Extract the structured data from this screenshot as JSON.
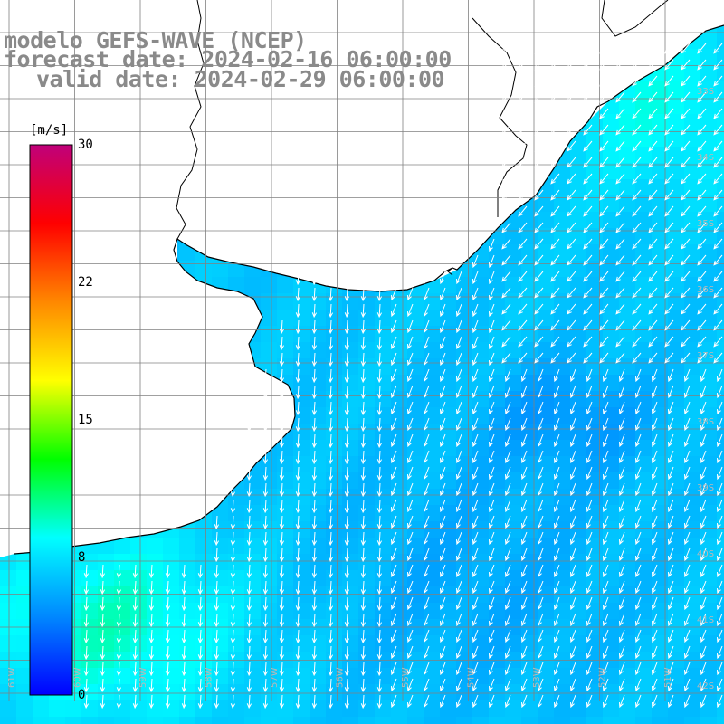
{
  "title": {
    "line1": "modelo GEFS-WAVE (NCEP)",
    "line2": "forecast date: 2024-02-16 06:00:00",
    "line3": "valid date: 2024-02-29 06:00:00"
  },
  "colorbar": {
    "unit": "[m/s]",
    "ticks": [
      "30",
      "22",
      "15",
      "8",
      "0"
    ],
    "tick_values": [
      30,
      22,
      15,
      8,
      0
    ],
    "range": [
      0,
      30
    ],
    "colors": [
      "#0000ff",
      "#0088ff",
      "#00ffff",
      "#00ff00",
      "#ffff00",
      "#ff8800",
      "#ff0000",
      "#c0007a"
    ]
  },
  "map": {
    "bottom_labels": [
      "61W",
      "60W",
      "59W",
      "58W",
      "57W",
      "56W",
      "55W",
      "54W",
      "53W",
      "52W",
      "51W"
    ],
    "right_labels": [
      "33S",
      "34S",
      "35S",
      "36S",
      "37S",
      "38S",
      "39S",
      "40S",
      "41S",
      "42S",
      "43S"
    ],
    "land_color": "#ffffff",
    "coast_color": "#000000",
    "grid_color": "#808080",
    "arrow_color": "#ffffff"
  }
}
